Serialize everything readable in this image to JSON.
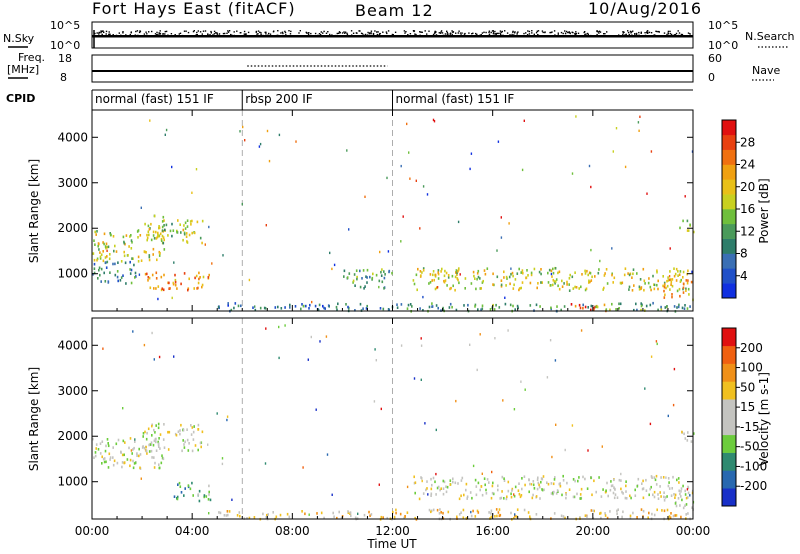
{
  "header": {
    "station": "Fort Hays East (fitACF)",
    "beam": "Beam 12",
    "date": "10/Aug/2016"
  },
  "left_labels": {
    "nsky": "N.Sky",
    "freq_line1": "Freq.",
    "freq_line2": "[MHz]",
    "cpid": "CPID"
  },
  "right_labels": {
    "nsearch": "N.Search",
    "nave": "Nave"
  },
  "noise_axis": {
    "left_ticks": [
      "10^5",
      "10^0"
    ],
    "right_ticks": [
      "10^5",
      "10^0"
    ]
  },
  "freq_axis": {
    "left_ticks": [
      "18",
      "8"
    ],
    "right_ticks": [
      "60",
      "0"
    ]
  },
  "cpid_segments": [
    {
      "label": "normal (fast) 151 IF",
      "start_hour": 0,
      "end_hour": 6
    },
    {
      "label": "rbsp 200 IF",
      "start_hour": 6,
      "end_hour": 12
    },
    {
      "label": "normal (fast) 151 IF",
      "start_hour": 12,
      "end_hour": 24
    }
  ],
  "chart_data": [
    {
      "type": "heatmap",
      "quantity": "power",
      "ylabel": "Slant Range [km]",
      "xlabel": "",
      "xlim": [
        0,
        24
      ],
      "ylim": [
        180,
        4600
      ],
      "yticks": [
        "1000",
        "2000",
        "3000",
        "4000"
      ],
      "colorbar": {
        "label": "Power [dB]",
        "ticks": [
          "4",
          "8",
          "12",
          "16",
          "20",
          "24",
          "28"
        ],
        "colors": [
          "#1030e0",
          "#2050c8",
          "#3a6fb4",
          "#2e7d6a",
          "#4a9a5a",
          "#6fbf3c",
          "#c8d020",
          "#e8c018",
          "#f0a010",
          "#f07010",
          "#e84010",
          "#e01010"
        ]
      },
      "echo_regions": [
        {
          "t0": 0.0,
          "t1": 2.9,
          "r0": 1300,
          "r1": 2000,
          "level": 0.55
        },
        {
          "t0": 2.0,
          "t1": 4.4,
          "r0": 1700,
          "r1": 2300,
          "level": 0.5
        },
        {
          "t0": 2.1,
          "t1": 4.7,
          "r0": 650,
          "r1": 1050,
          "level": 0.75
        },
        {
          "t0": 0.0,
          "t1": 1.8,
          "r0": 800,
          "r1": 1300,
          "level": 0.3
        },
        {
          "t0": 10.0,
          "t1": 12.0,
          "r0": 700,
          "r1": 1150,
          "level": 0.35
        },
        {
          "t0": 12.8,
          "t1": 23.8,
          "r0": 650,
          "r1": 1150,
          "level": 0.55
        },
        {
          "t0": 19.0,
          "t1": 20.5,
          "r0": 200,
          "r1": 400,
          "level": 0.85
        },
        {
          "t0": 22.8,
          "t1": 24.0,
          "r0": 450,
          "r1": 900,
          "level": 0.65
        },
        {
          "t0": 23.4,
          "t1": 24.0,
          "r0": 1900,
          "r1": 2200,
          "level": 0.45
        },
        {
          "t0": 5.0,
          "t1": 12.0,
          "r0": 200,
          "r1": 380,
          "level": 0.25
        },
        {
          "t0": 12.0,
          "t1": 24.0,
          "r0": 200,
          "r1": 380,
          "level": 0.35
        }
      ]
    },
    {
      "type": "heatmap",
      "quantity": "velocity",
      "ylabel": "Slant Range [km]",
      "xlabel": "Time UT",
      "xlim": [
        0,
        24
      ],
      "ylim": [
        180,
        4600
      ],
      "xticks": [
        "00:00",
        "04:00",
        "08:00",
        "12:00",
        "16:00",
        "20:00",
        "00:00"
      ],
      "yticks": [
        "1000",
        "2000",
        "3000",
        "4000"
      ],
      "colorbar": {
        "label": "Velocity [m s-1]",
        "ticks": [
          "200",
          "100",
          "50",
          "15",
          "-15",
          "-50",
          "-100",
          "-200"
        ],
        "colors": [
          "#1830c8",
          "#2868b0",
          "#2f8a70",
          "#6ccc3c",
          "#c4c4c0",
          "#c4c4c0",
          "#f0c020",
          "#f09018",
          "#f06010",
          "#e01010"
        ]
      },
      "echo_regions": [
        {
          "t0": 0.0,
          "t1": 2.9,
          "r0": 1300,
          "r1": 2000,
          "level": 0.5
        },
        {
          "t0": 2.0,
          "t1": 4.4,
          "r0": 1700,
          "r1": 2300,
          "level": 0.5
        },
        {
          "t0": 3.2,
          "t1": 4.7,
          "r0": 600,
          "r1": 1000,
          "level": 0.33
        },
        {
          "t0": 12.8,
          "t1": 23.8,
          "r0": 650,
          "r1": 1150,
          "level": 0.5
        },
        {
          "t0": 22.8,
          "t1": 24.0,
          "r0": 450,
          "r1": 900,
          "level": 0.5
        },
        {
          "t0": 23.4,
          "t1": 24.0,
          "r0": 1900,
          "r1": 2200,
          "level": 0.5
        },
        {
          "t0": 5.0,
          "t1": 12.0,
          "r0": 200,
          "r1": 380,
          "level": 0.6
        },
        {
          "t0": 12.0,
          "t1": 24.0,
          "r0": 200,
          "r1": 420,
          "level": 0.62
        }
      ]
    }
  ]
}
